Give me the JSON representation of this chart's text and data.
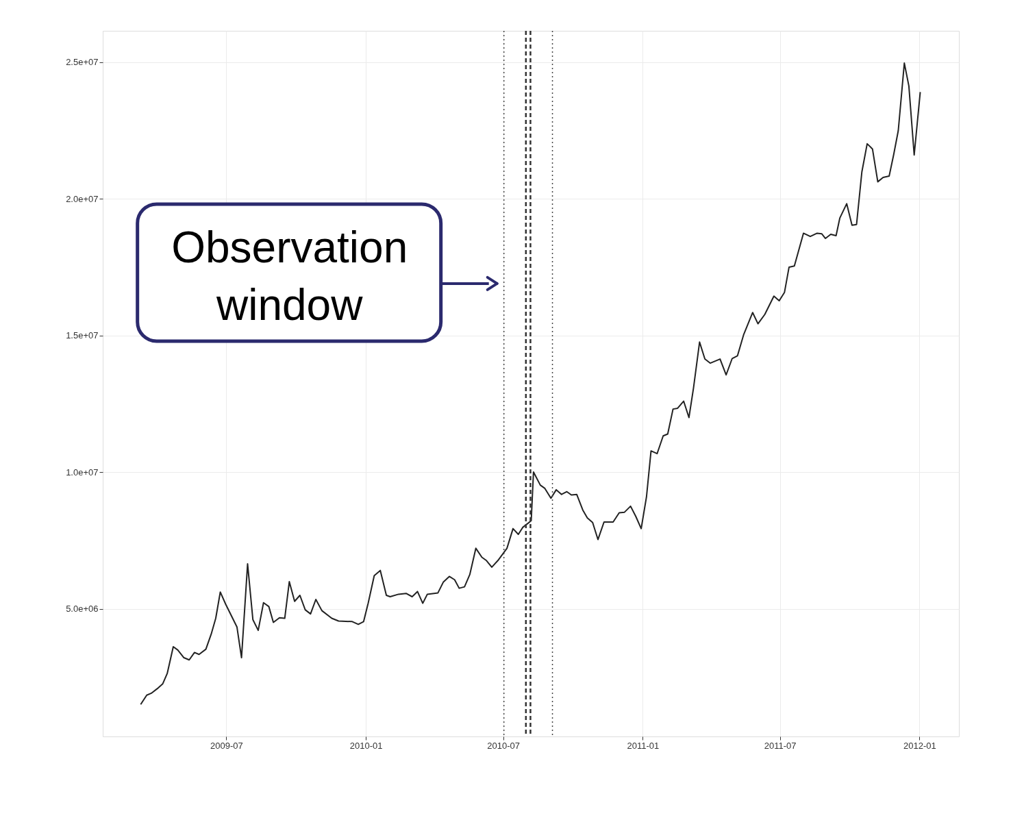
{
  "chart_data": {
    "type": "line",
    "x": [
      "2009-03-10",
      "2009-03-18",
      "2009-03-24",
      "2009-04-01",
      "2009-04-08",
      "2009-04-14",
      "2009-04-22",
      "2009-04-28",
      "2009-05-06",
      "2009-05-13",
      "2009-05-20",
      "2009-05-26",
      "2009-06-04",
      "2009-06-11",
      "2009-06-17",
      "2009-06-23",
      "2009-06-30",
      "2009-07-15",
      "2009-07-21",
      "2009-07-29",
      "2009-08-05",
      "2009-08-12",
      "2009-08-19",
      "2009-08-26",
      "2009-09-01",
      "2009-09-09",
      "2009-09-16",
      "2009-09-22",
      "2009-09-29",
      "2009-10-06",
      "2009-10-13",
      "2009-10-20",
      "2009-10-27",
      "2009-11-04",
      "2009-11-17",
      "2009-11-26",
      "2009-12-14",
      "2009-12-22",
      "2009-12-29",
      "2010-01-04",
      "2010-01-12",
      "2010-01-20",
      "2010-01-28",
      "2010-02-02",
      "2010-02-13",
      "2010-02-23",
      "2010-03-03",
      "2010-03-10",
      "2010-03-17",
      "2010-03-23",
      "2010-04-06",
      "2010-04-13",
      "2010-04-21",
      "2010-04-28",
      "2010-05-04",
      "2010-05-11",
      "2010-05-18",
      "2010-05-26",
      "2010-06-03",
      "2010-06-09",
      "2010-06-16",
      "2010-06-24",
      "2010-07-06",
      "2010-07-14",
      "2010-07-21",
      "2010-07-27",
      "2010-08-03",
      "2010-08-07",
      "2010-08-10",
      "2010-08-19",
      "2010-08-25",
      "2010-09-02",
      "2010-09-09",
      "2010-09-16",
      "2010-09-23",
      "2010-09-29",
      "2010-10-06",
      "2010-10-14",
      "2010-10-20",
      "2010-10-27",
      "2010-11-03",
      "2010-11-11",
      "2010-11-23",
      "2010-12-01",
      "2010-12-08",
      "2010-12-16",
      "2010-12-23",
      "2010-12-30",
      "2011-01-06",
      "2011-01-12",
      "2011-01-20",
      "2011-01-28",
      "2011-02-03",
      "2011-02-10",
      "2011-02-16",
      "2011-02-24",
      "2011-03-03",
      "2011-03-09",
      "2011-03-17",
      "2011-03-24",
      "2011-03-31",
      "2011-04-13",
      "2011-04-21",
      "2011-04-29",
      "2011-05-06",
      "2011-05-14",
      "2011-05-26",
      "2011-06-02",
      "2011-06-11",
      "2011-06-23",
      "2011-06-30",
      "2011-07-07",
      "2011-07-13",
      "2011-07-20",
      "2011-08-01",
      "2011-08-10",
      "2011-08-19",
      "2011-08-25",
      "2011-08-30",
      "2011-09-06",
      "2011-09-13",
      "2011-09-18",
      "2011-09-27",
      "2011-10-04",
      "2011-10-10",
      "2011-10-17",
      "2011-10-24",
      "2011-10-31",
      "2011-11-07",
      "2011-11-14",
      "2011-11-22",
      "2011-11-28",
      "2011-12-04",
      "2011-12-12",
      "2011-12-18",
      "2011-12-25",
      "2012-01-02"
    ],
    "series": [
      {
        "color": "#222222",
        "values": [
          1510000,
          1850000,
          1920000,
          2090000,
          2260000,
          2640000,
          3620000,
          3500000,
          3220000,
          3140000,
          3410000,
          3340000,
          3530000,
          4080000,
          4660000,
          5620000,
          5180000,
          4340000,
          3220000,
          6650000,
          4610000,
          4220000,
          5230000,
          5090000,
          4510000,
          4680000,
          4660000,
          6000000,
          5280000,
          5500000,
          4970000,
          4820000,
          5350000,
          4940000,
          4660000,
          4560000,
          4540000,
          4440000,
          4540000,
          5210000,
          6220000,
          6410000,
          5500000,
          5450000,
          5540000,
          5570000,
          5450000,
          5640000,
          5210000,
          5540000,
          5590000,
          5980000,
          6190000,
          6070000,
          5760000,
          5810000,
          6260000,
          7220000,
          6890000,
          6770000,
          6530000,
          6770000,
          7220000,
          7940000,
          7730000,
          7990000,
          8140000,
          8230000,
          10010000,
          9530000,
          9410000,
          9050000,
          9360000,
          9190000,
          9290000,
          9170000,
          9190000,
          8620000,
          8330000,
          8160000,
          7540000,
          8180000,
          8180000,
          8520000,
          8540000,
          8760000,
          8380000,
          7940000,
          9100000,
          10780000,
          10680000,
          11330000,
          11400000,
          12310000,
          12340000,
          12600000,
          12000000,
          13080000,
          14760000,
          14140000,
          13990000,
          14140000,
          13560000,
          14160000,
          14260000,
          15020000,
          15840000,
          15430000,
          15770000,
          16440000,
          16270000,
          16580000,
          17500000,
          17540000,
          18740000,
          18620000,
          18740000,
          18720000,
          18550000,
          18700000,
          18650000,
          19300000,
          19820000,
          19030000,
          19060000,
          20980000,
          22010000,
          21820000,
          20620000,
          20780000,
          20830000,
          21620000,
          22490000,
          24960000,
          24120000,
          21600000,
          23900000
        ]
      }
    ],
    "xlim": [
      "2009-01-19",
      "2012-02-22"
    ],
    "xticks": [
      "2009-07",
      "2010-01",
      "2010-07",
      "2011-01",
      "2011-07",
      "2012-01"
    ],
    "ylim": [
      340000,
      26140000
    ],
    "yticks": [
      {
        "value": 5000000,
        "label": "5.0e+06"
      },
      {
        "value": 10000000,
        "label": "1.0e+07"
      },
      {
        "value": 15000000,
        "label": "1.5e+07"
      },
      {
        "value": 20000000,
        "label": "2.0e+07"
      },
      {
        "value": 25000000,
        "label": "2.5e+07"
      }
    ],
    "ref_lines": [
      {
        "axis": "x",
        "value": "2010-07-02",
        "line_style": "dotted",
        "color": "#444444"
      },
      {
        "axis": "x",
        "value": "2010-07-31",
        "line_style": "dashed",
        "color": "#333333"
      },
      {
        "axis": "x",
        "value": "2010-08-06",
        "line_style": "dashed",
        "color": "#333333"
      },
      {
        "axis": "x",
        "value": "2010-09-04",
        "line_style": "dotted",
        "color": "#444444"
      }
    ],
    "annotations": [
      {
        "text": "Observation window",
        "x": "2010-07-02",
        "y": 16900000
      }
    ],
    "grid": true,
    "line_style": "solid"
  }
}
